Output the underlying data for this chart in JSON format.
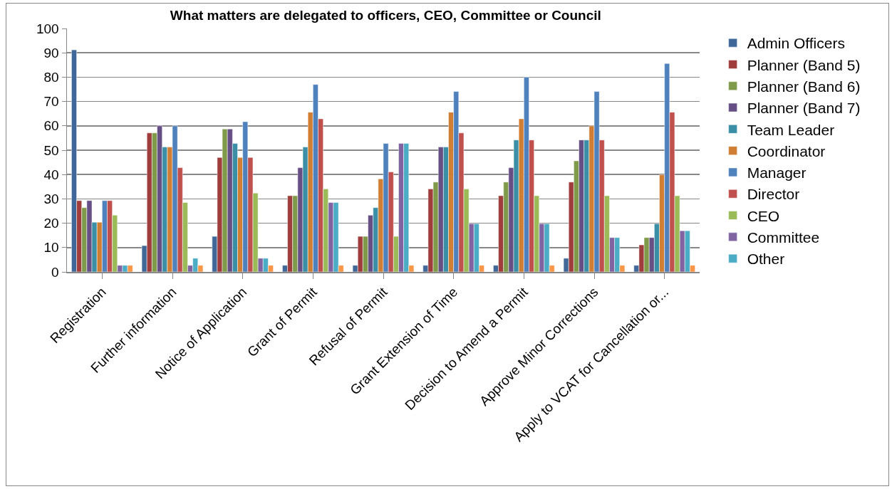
{
  "chart_data": {
    "type": "bar",
    "title": "What matters are delegated to officers, CEO, Committee or Council",
    "categories": [
      "Registration",
      "Further information",
      "Notice of Application",
      "Grant of Permit",
      "Refusal of Permit",
      "Grant Extension of Time",
      "Decision to Amend a Permit",
      "Approve Minor Corrections",
      "Apply to VCAT for Cancellation or..."
    ],
    "series": [
      {
        "name": "Admin Officers",
        "color": "#3f6797",
        "values": [
          91.2,
          10.8,
          14.6,
          2.7,
          2.7,
          2.7,
          2.7,
          5.6,
          2.7
        ]
      },
      {
        "name": "Planner (Band 5)",
        "color": "#9e3d3b",
        "values": [
          29.3,
          57.1,
          47,
          31.3,
          14.6,
          34.1,
          31.3,
          36.9,
          11.1
        ]
      },
      {
        "name": "Planner (Band 6)",
        "color": "#7f9a48",
        "values": [
          26.4,
          57.1,
          58.7,
          31.3,
          14.6,
          36.9,
          36.9,
          45.6,
          14.1
        ]
      },
      {
        "name": "Planner (Band 7)",
        "color": "#664f84",
        "values": [
          29.3,
          60,
          58.7,
          42.8,
          23.3,
          51.3,
          42.8,
          54.2,
          14.1
        ]
      },
      {
        "name": "Team Leader",
        "color": "#3a8ea5",
        "values": [
          20.4,
          51.3,
          52.8,
          51.3,
          26.4,
          51.3,
          54.2,
          54.2,
          19.8
        ]
      },
      {
        "name": "Coordinator",
        "color": "#d07e34",
        "values": [
          20.4,
          51.3,
          47,
          65.6,
          38.2,
          65.6,
          62.9,
          60,
          39.9
        ]
      },
      {
        "name": "Manager",
        "color": "#4f81bd",
        "values": [
          29.3,
          60,
          61.7,
          77,
          52.8,
          74.1,
          80,
          74.1,
          85.6
        ]
      },
      {
        "name": "Director",
        "color": "#c0504d",
        "values": [
          29.3,
          42.8,
          47,
          62.9,
          41.1,
          57.1,
          54.2,
          54.2,
          65.6
        ]
      },
      {
        "name": "CEO",
        "color": "#9bbb59",
        "values": [
          23.3,
          28.5,
          32.4,
          34.1,
          14.6,
          34.1,
          31.3,
          31.3,
          31.3
        ]
      },
      {
        "name": "Committee",
        "color": "#8064a2",
        "values": [
          2.7,
          2.7,
          5.6,
          28.5,
          52.8,
          19.8,
          19.8,
          14.1,
          16.9
        ]
      },
      {
        "name": "Other",
        "color": "#4bacc6",
        "values": [
          2.7,
          5.6,
          5.6,
          28.5,
          52.8,
          19.8,
          19.8,
          14.1,
          16.9
        ]
      },
      {
        "color": "#f79646",
        "values": [
          2.7,
          2.7,
          2.7,
          2.7,
          2.7,
          2.7,
          2.7,
          2.7,
          2.7
        ]
      }
    ],
    "ylim": [
      0,
      100
    ],
    "yticks": [
      0,
      10,
      20,
      30,
      40,
      50,
      60,
      70,
      80,
      90,
      100
    ],
    "grid": "y",
    "legend": "right"
  }
}
